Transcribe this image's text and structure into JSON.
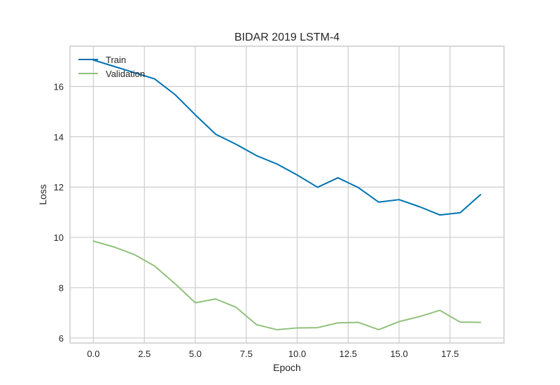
{
  "chart_data": {
    "type": "line",
    "title": "BIDAR 2019 LSTM-4",
    "xlabel": "Epoch",
    "ylabel": "Loss",
    "xlim": [
      -1.15,
      20.15
    ],
    "ylim": [
      5.8,
      17.6
    ],
    "xticks": [
      0.0,
      2.5,
      5.0,
      7.5,
      10.0,
      12.5,
      15.0,
      17.5
    ],
    "xtick_labels": [
      "0.0",
      "2.5",
      "5.0",
      "7.5",
      "10.0",
      "12.5",
      "15.0",
      "17.5"
    ],
    "yticks": [
      6,
      8,
      10,
      12,
      14,
      16
    ],
    "ytick_labels": [
      "6",
      "8",
      "10",
      "12",
      "14",
      "16"
    ],
    "grid": true,
    "legend_position": "top-left",
    "x": [
      0,
      1,
      2,
      3,
      4,
      5,
      6,
      7,
      8,
      9,
      10,
      11,
      12,
      13,
      14,
      15,
      16,
      17,
      18,
      19
    ],
    "series": [
      {
        "name": "Train",
        "color": "#0072b2",
        "values": [
          17.05,
          16.8,
          16.55,
          16.3,
          15.68,
          14.87,
          14.1,
          13.7,
          13.25,
          12.92,
          12.48,
          11.99,
          12.37,
          11.98,
          11.4,
          11.5,
          11.22,
          10.89,
          10.98,
          11.7
        ]
      },
      {
        "name": "Validation",
        "color": "#91c17c",
        "values": [
          9.85,
          9.62,
          9.32,
          8.86,
          8.16,
          7.4,
          7.55,
          7.22,
          6.53,
          6.33,
          6.4,
          6.41,
          6.6,
          6.62,
          6.33,
          6.65,
          6.85,
          7.1,
          6.63,
          6.62
        ]
      }
    ]
  }
}
